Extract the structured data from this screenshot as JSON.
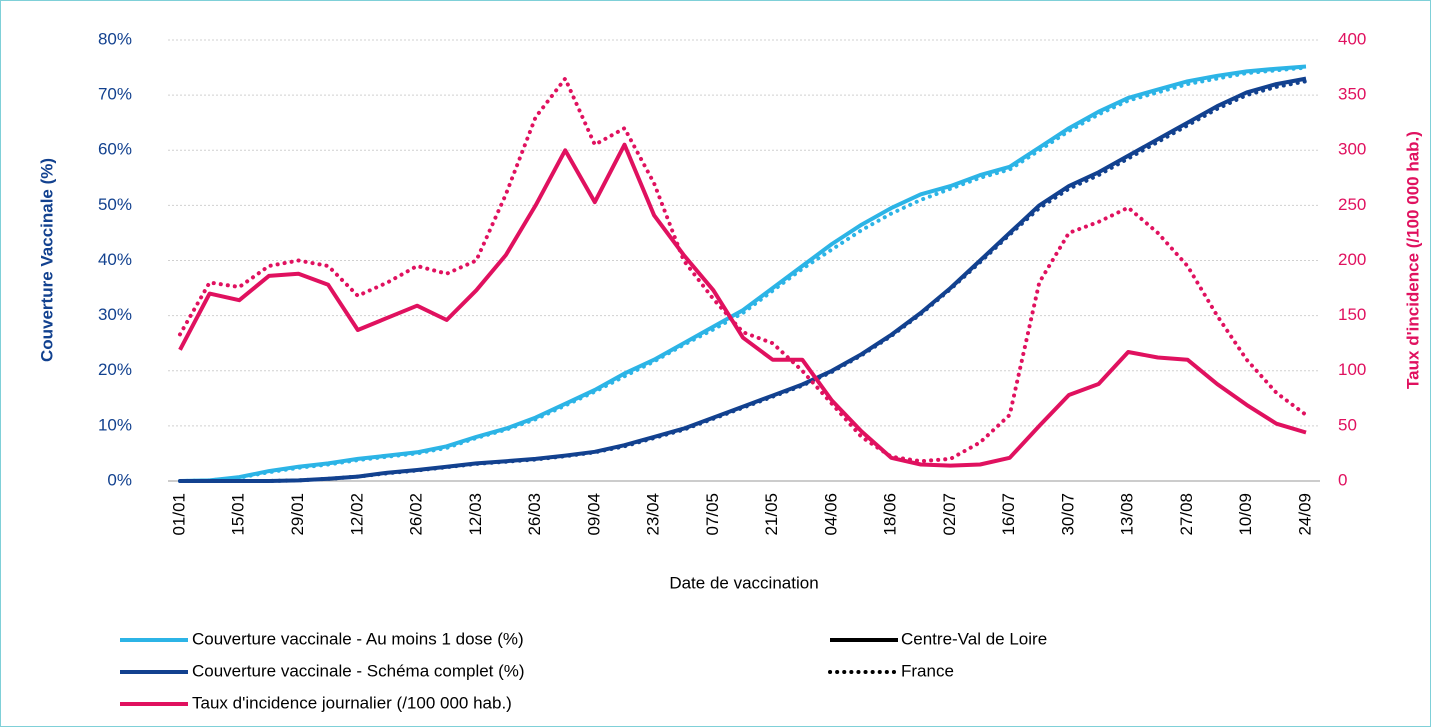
{
  "chart_data": {
    "type": "line",
    "x_label": "Date de vaccination",
    "y_label": "Couverture Vaccinale (%)",
    "y2_label": "Taux d'incidence (/100 000 hab.)",
    "categories": [
      "01/01",
      null,
      "15/01",
      null,
      "29/01",
      null,
      "12/02",
      null,
      "26/02",
      null,
      "12/03",
      null,
      "26/03",
      null,
      "09/04",
      null,
      "23/04",
      null,
      "07/05",
      null,
      "21/05",
      null,
      "04/06",
      null,
      "18/06",
      null,
      "02/07",
      null,
      "16/07",
      null,
      "30/07",
      null,
      "13/08",
      null,
      "27/08",
      null,
      "10/09",
      null,
      "24/09"
    ],
    "ylim": [
      0,
      80
    ],
    "yticks": [
      {
        "value": 0,
        "label": "0%"
      },
      {
        "value": 10,
        "label": "10%"
      },
      {
        "value": 20,
        "label": "20%"
      },
      {
        "value": 30,
        "label": "30%"
      },
      {
        "value": 40,
        "label": "40%"
      },
      {
        "value": 50,
        "label": "50%"
      },
      {
        "value": 60,
        "label": "60%"
      },
      {
        "value": 70,
        "label": "70%"
      },
      {
        "value": 80,
        "label": "80%"
      }
    ],
    "y2lim": [
      0,
      400
    ],
    "y2ticks": [
      0,
      50,
      100,
      150,
      200,
      250,
      300,
      350,
      400
    ],
    "grid": true,
    "regions": [
      {
        "name": "Centre-Val de Loire",
        "style": "solid"
      },
      {
        "name": "France",
        "style": "dotted"
      }
    ],
    "measures": [
      {
        "name": "Couverture vaccinale - Au moins 1 dose (%)",
        "color": "#2cb4e6",
        "axis": "y",
        "regions": [
          {
            "values": [
              0,
              0.1,
              0.7,
              1.8,
              2.6,
              3.2,
              4,
              4.6,
              5.2,
              6.3,
              8,
              9.5,
              11.5,
              14,
              16.5,
              19.5,
              22,
              25,
              28,
              31,
              35,
              39,
              43,
              46.5,
              49.5,
              52,
              53.5,
              55.5,
              57,
              60.5,
              64,
              67,
              69.5,
              71,
              72.5,
              73.5,
              74.3,
              74.8,
              75.2
            ]
          },
          {
            "values": [
              0,
              0.1,
              0.6,
              1.6,
              2.4,
              3,
              3.8,
              4.4,
              5,
              6,
              7.8,
              9.3,
              11.2,
              13.7,
              16.2,
              19,
              21.7,
              24.7,
              27.5,
              30.5,
              34.5,
              38.5,
              42,
              45.5,
              48.5,
              51,
              53,
              55,
              56.5,
              60,
              63.5,
              66.5,
              69,
              70.5,
              72,
              73,
              74,
              74.5,
              75
            ]
          }
        ]
      },
      {
        "name": "Couverture vaccinale - Schéma complet (%)",
        "color": "#12418f",
        "axis": "y",
        "regions": [
          {
            "values": [
              0,
              0,
              0,
              0,
              0.1,
              0.4,
              0.8,
              1.5,
              2,
              2.6,
              3.2,
              3.6,
              4,
              4.6,
              5.3,
              6.5,
              8,
              9.5,
              11.5,
              13.5,
              15.5,
              17.5,
              20,
              23,
              26.5,
              30.5,
              35,
              40,
              45,
              50,
              53.5,
              56,
              59,
              62,
              65,
              68,
              70.5,
              72,
              73
            ]
          },
          {
            "values": [
              0,
              0,
              0,
              0,
              0.1,
              0.4,
              0.8,
              1.4,
              1.9,
              2.5,
              3.1,
              3.5,
              3.9,
              4.5,
              5.2,
              6.3,
              7.8,
              9.3,
              11.3,
              13.3,
              15.3,
              17.3,
              19.8,
              22.8,
              26.3,
              30.3,
              34.8,
              39.7,
              44.7,
              49.5,
              53,
              55.5,
              58.5,
              61.5,
              64.5,
              67.5,
              70,
              71.5,
              72.5
            ]
          }
        ]
      },
      {
        "name": "Taux d'incidence journalier (/100 000 hab.)",
        "color": "#e0115f",
        "axis": "y2",
        "regions": [
          {
            "values": [
              119,
              170,
              164,
              186,
              188,
              178,
              137,
              148,
              159,
              146,
              173,
              205,
              250,
              300,
              253,
              305,
              241,
              205,
              173,
              130,
              110,
              110,
              73,
              45,
              21,
              15,
              14,
              15,
              21,
              50,
              78,
              88,
              117,
              112,
              110,
              88,
              69,
              52,
              44
            ]
          },
          {
            "values": [
              133,
              180,
              176,
              195,
              200,
              195,
              168,
              180,
              195,
              188,
              200,
              260,
              330,
              365,
              305,
              320,
              270,
              200,
              165,
              135,
              125,
              100,
              70,
              40,
              22,
              18,
              20,
              35,
              60,
              180,
              225,
              235,
              248,
              225,
              195,
              150,
              110,
              80,
              60
            ]
          }
        ]
      }
    ]
  }
}
